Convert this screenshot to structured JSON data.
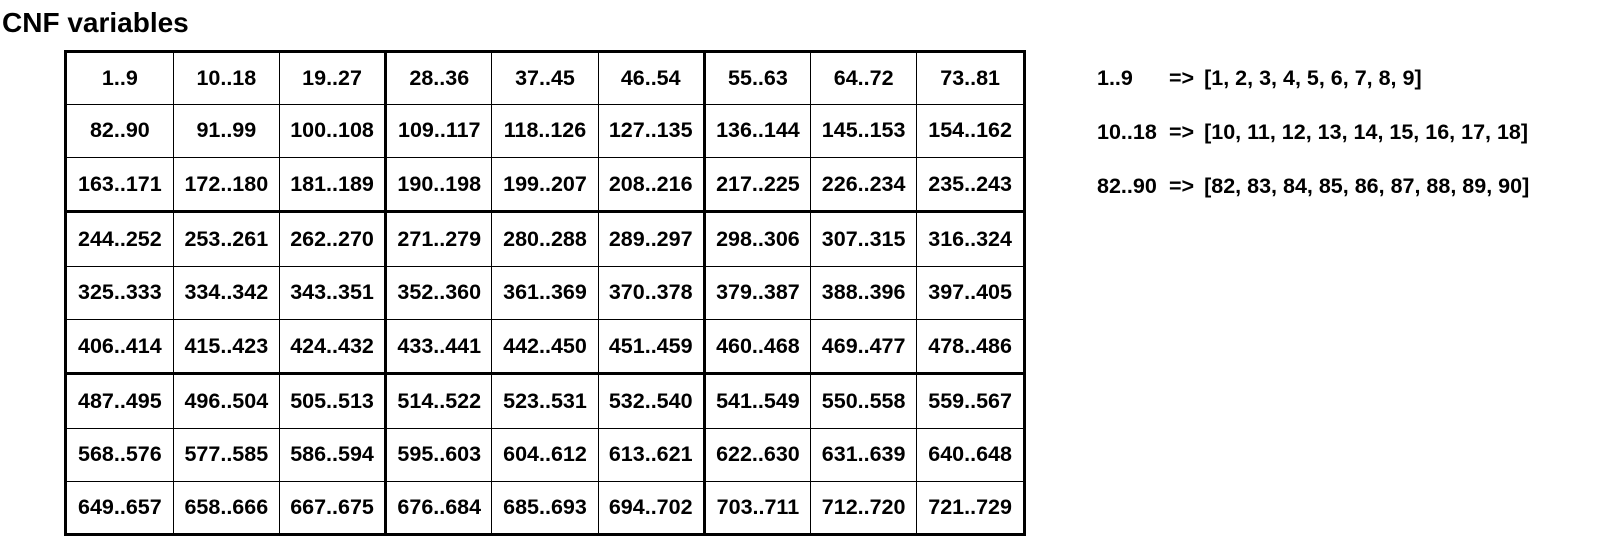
{
  "title": "CNF variables",
  "grid": {
    "rows": [
      [
        "1..9",
        "10..18",
        "19..27",
        "28..36",
        "37..45",
        "46..54",
        "55..63",
        "64..72",
        "73..81"
      ],
      [
        "82..90",
        "91..99",
        "100..108",
        "109..117",
        "118..126",
        "127..135",
        "136..144",
        "145..153",
        "154..162"
      ],
      [
        "163..171",
        "172..180",
        "181..189",
        "190..198",
        "199..207",
        "208..216",
        "217..225",
        "226..234",
        "235..243"
      ],
      [
        "244..252",
        "253..261",
        "262..270",
        "271..279",
        "280..288",
        "289..297",
        "298..306",
        "307..315",
        "316..324"
      ],
      [
        "325..333",
        "334..342",
        "343..351",
        "352..360",
        "361..369",
        "370..378",
        "379..387",
        "388..396",
        "397..405"
      ],
      [
        "406..414",
        "415..423",
        "424..432",
        "433..441",
        "442..450",
        "451..459",
        "460..468",
        "469..477",
        "478..486"
      ],
      [
        "487..495",
        "496..504",
        "505..513",
        "514..522",
        "523..531",
        "532..540",
        "541..549",
        "550..558",
        "559..567"
      ],
      [
        "568..576",
        "577..585",
        "586..594",
        "595..603",
        "604..612",
        "613..621",
        "622..630",
        "631..639",
        "640..648"
      ],
      [
        "649..657",
        "658..666",
        "667..675",
        "676..684",
        "685..693",
        "694..702",
        "703..711",
        "712..720",
        "721..729"
      ]
    ]
  },
  "legend": [
    {
      "range": "1..9",
      "arrow": "=>",
      "values": "[1, 2, 3, 4, 5, 6, 7, 8, 9]"
    },
    {
      "range": "10..18",
      "arrow": "=>",
      "values": "[10, 11, 12, 13, 14, 15, 16, 17, 18]"
    },
    {
      "range": "82..90",
      "arrow": "=>",
      "values": "[82, 83, 84, 85, 86, 87, 88, 89, 90]"
    }
  ]
}
